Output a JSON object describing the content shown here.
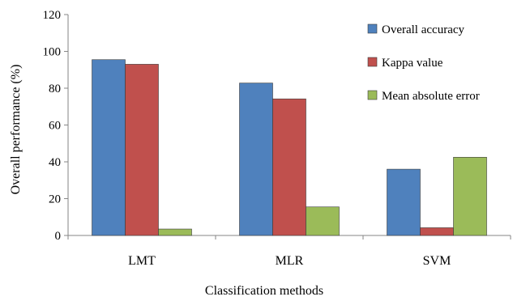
{
  "chart_data": {
    "type": "bar",
    "title": "",
    "xlabel": "Classification methods",
    "ylabel": "Overall performance (%)",
    "ylim": [
      0,
      120
    ],
    "yticks": [
      0,
      20,
      40,
      60,
      80,
      100,
      120
    ],
    "grid": false,
    "legend_position": "top-right",
    "categories": [
      "LMT",
      "MLR",
      "SVM"
    ],
    "series": [
      {
        "name": "Overall accuracy",
        "color": "#4F81BD",
        "values": [
          95.5,
          82.8,
          36.0
        ]
      },
      {
        "name": "Kappa value",
        "color": "#C0504D",
        "values": [
          93.0,
          74.2,
          4.2
        ]
      },
      {
        "name": "Mean absolute error",
        "color": "#9BBB59",
        "values": [
          3.5,
          15.5,
          42.5
        ]
      }
    ]
  }
}
